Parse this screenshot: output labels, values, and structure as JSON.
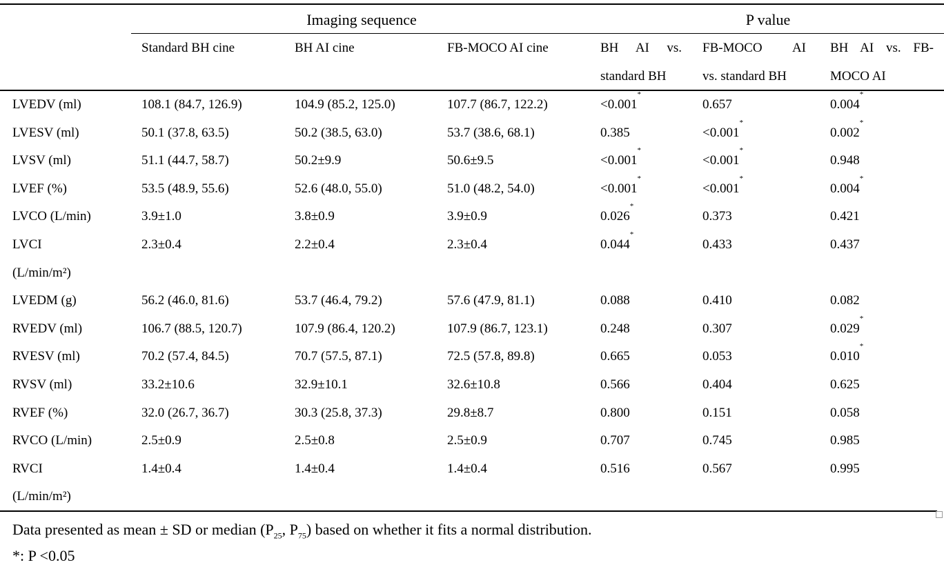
{
  "groups": {
    "imaging": "Imaging sequence",
    "pvalue": "P value"
  },
  "columns": [
    {
      "lines": [
        "Standard BH cine"
      ]
    },
    {
      "lines": [
        "BH AI cine"
      ]
    },
    {
      "lines": [
        "FB-MOCO AI cine"
      ]
    },
    {
      "lines": [
        "BH AI vs.",
        "standard BH"
      ]
    },
    {
      "lines": [
        "FB-MOCO AI",
        "vs. standard BH"
      ]
    },
    {
      "lines": [
        "BH AI vs. FB-",
        "MOCO AI"
      ]
    }
  ],
  "star": "*",
  "rows": [
    {
      "label": [
        "LVEDV (ml)"
      ],
      "values": [
        "108.1 (84.7, 126.9)",
        "104.9 (85.2, 125.0)",
        "107.7 (86.7, 122.2)"
      ],
      "p": [
        [
          "<0.001",
          true
        ],
        [
          "0.657",
          false
        ],
        [
          "0.004",
          true
        ]
      ]
    },
    {
      "label": [
        "LVESV (ml)"
      ],
      "values": [
        "50.1 (37.8, 63.5)",
        "50.2 (38.5, 63.0)",
        "53.7 (38.6, 68.1)"
      ],
      "p": [
        [
          "0.385",
          false
        ],
        [
          "<0.001",
          true
        ],
        [
          "0.002",
          true
        ]
      ]
    },
    {
      "label": [
        "LVSV (ml)"
      ],
      "values": [
        "51.1 (44.7, 58.7)",
        "50.2±9.9",
        "50.6±9.5"
      ],
      "p": [
        [
          "<0.001",
          true
        ],
        [
          "<0.001",
          true
        ],
        [
          "0.948",
          false
        ]
      ]
    },
    {
      "label": [
        "LVEF (%)"
      ],
      "values": [
        "53.5 (48.9, 55.6)",
        "52.6 (48.0, 55.0)",
        "51.0 (48.2, 54.0)"
      ],
      "p": [
        [
          "<0.001",
          true
        ],
        [
          "<0.001",
          true
        ],
        [
          "0.004",
          true
        ]
      ]
    },
    {
      "label": [
        "LVCO (L/min)"
      ],
      "values": [
        "3.9±1.0",
        "3.8±0.9",
        "3.9±0.9"
      ],
      "p": [
        [
          "0.026",
          true
        ],
        [
          "0.373",
          false
        ],
        [
          "0.421",
          false
        ]
      ]
    },
    {
      "label": [
        "LVCI",
        "(L/min/m²)"
      ],
      "values": [
        "2.3±0.4",
        "2.2±0.4",
        "2.3±0.4"
      ],
      "p": [
        [
          "0.044",
          true
        ],
        [
          "0.433",
          false
        ],
        [
          "0.437",
          false
        ]
      ]
    },
    {
      "label": [
        "LVEDM (g)"
      ],
      "values": [
        "56.2 (46.0, 81.6)",
        "53.7 (46.4, 79.2)",
        "57.6 (47.9, 81.1)"
      ],
      "p": [
        [
          "0.088",
          false
        ],
        [
          "0.410",
          false
        ],
        [
          "0.082",
          false
        ]
      ]
    },
    {
      "label": [
        "RVEDV (ml)"
      ],
      "values": [
        "106.7 (88.5, 120.7)",
        "107.9 (86.4, 120.2)",
        "107.9 (86.7, 123.1)"
      ],
      "p": [
        [
          "0.248",
          false
        ],
        [
          "0.307",
          false
        ],
        [
          "0.029",
          true
        ]
      ]
    },
    {
      "label": [
        "RVESV (ml)"
      ],
      "values": [
        "70.2 (57.4, 84.5)",
        "70.7 (57.5, 87.1)",
        "72.5 (57.8, 89.8)"
      ],
      "p": [
        [
          "0.665",
          false
        ],
        [
          "0.053",
          false
        ],
        [
          "0.010",
          true
        ]
      ]
    },
    {
      "label": [
        "RVSV (ml)"
      ],
      "values": [
        "33.2±10.6",
        "32.9±10.1",
        "32.6±10.8"
      ],
      "p": [
        [
          "0.566",
          false
        ],
        [
          "0.404",
          false
        ],
        [
          "0.625",
          false
        ]
      ]
    },
    {
      "label": [
        "RVEF (%)"
      ],
      "values": [
        "32.0 (26.7, 36.7)",
        "30.3 (25.8, 37.3)",
        "29.8±8.7"
      ],
      "p": [
        [
          "0.800",
          false
        ],
        [
          "0.151",
          false
        ],
        [
          "0.058",
          false
        ]
      ]
    },
    {
      "label": [
        "RVCO (L/min)"
      ],
      "values": [
        "2.5±0.9",
        "2.5±0.8",
        "2.5±0.9"
      ],
      "p": [
        [
          "0.707",
          false
        ],
        [
          "0.745",
          false
        ],
        [
          "0.985",
          false
        ]
      ]
    },
    {
      "label": [
        "RVCI",
        "(L/min/m²)"
      ],
      "values": [
        "1.4±0.4",
        "1.4±0.4",
        "1.4±0.4"
      ],
      "p": [
        [
          "0.516",
          false
        ],
        [
          "0.567",
          false
        ],
        [
          "0.995",
          false
        ]
      ]
    }
  ],
  "footnote": {
    "a": "Data presented as mean ± SD or median (P",
    "sub1": "25",
    "b": ", P",
    "sub2": "75",
    "c": ") based on whether it fits a normal distribution.",
    "sig": "*: P <0.05"
  }
}
